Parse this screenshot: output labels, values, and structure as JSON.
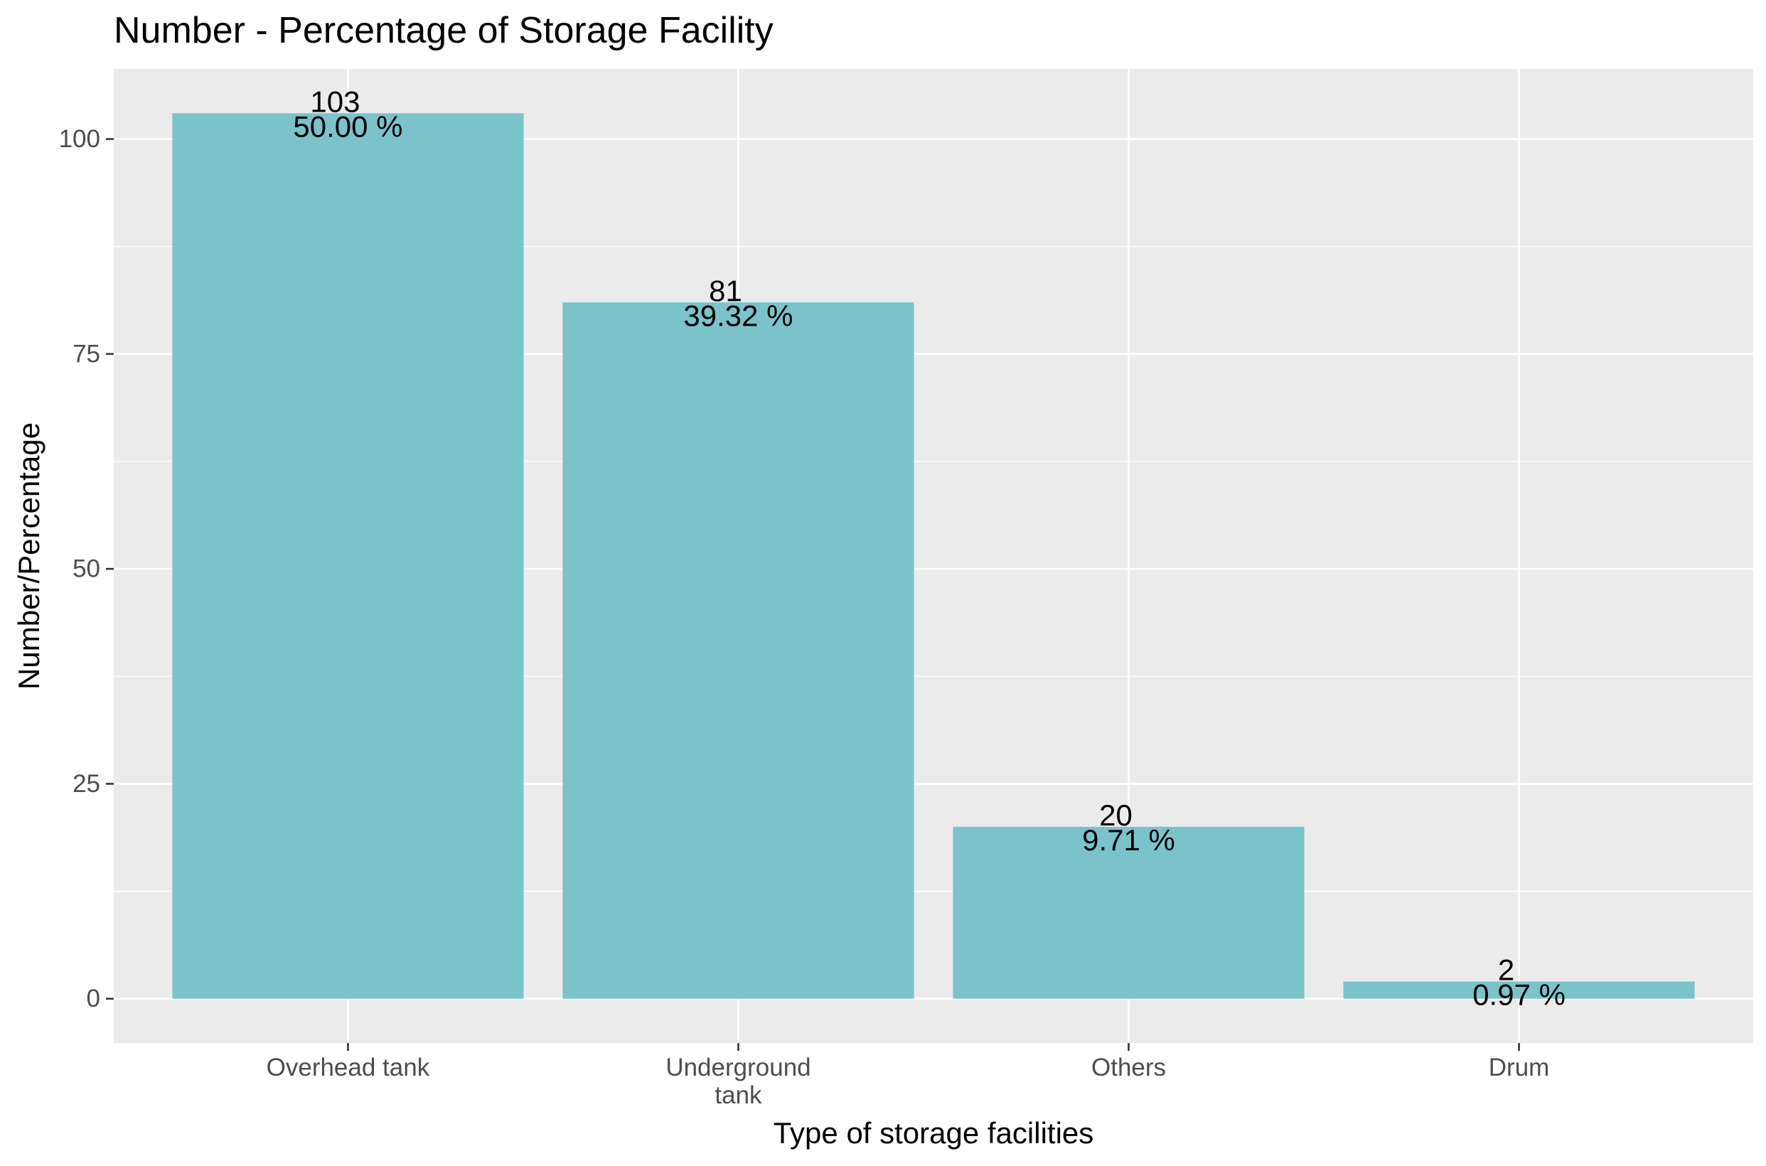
{
  "chart_data": {
    "type": "bar",
    "title": "Number - Percentage of Storage Facility",
    "xlabel": "Type of storage facilities",
    "ylabel": "Number/Percentage",
    "categories": [
      "Overhead tank",
      "Underground\ntank",
      "Others",
      "Drum"
    ],
    "values": [
      103,
      81,
      20,
      2
    ],
    "value_labels": [
      "103",
      "81",
      "20",
      "2"
    ],
    "percent_labels": [
      "50.00 %",
      "39.32 %",
      "9.71 %",
      "0.97 %"
    ],
    "ylim": [
      -5.15,
      108.15
    ],
    "yticks": [
      0,
      25,
      50,
      75,
      100
    ],
    "ytick_labels": [
      "0",
      "25",
      "50",
      "75",
      "100"
    ],
    "grid": true,
    "colors": {
      "bar": "#7bc3cb",
      "panel": "#ebebeb",
      "grid": "#ffffff",
      "tick": "#333333",
      "tick_text": "#4d4d4d"
    }
  }
}
